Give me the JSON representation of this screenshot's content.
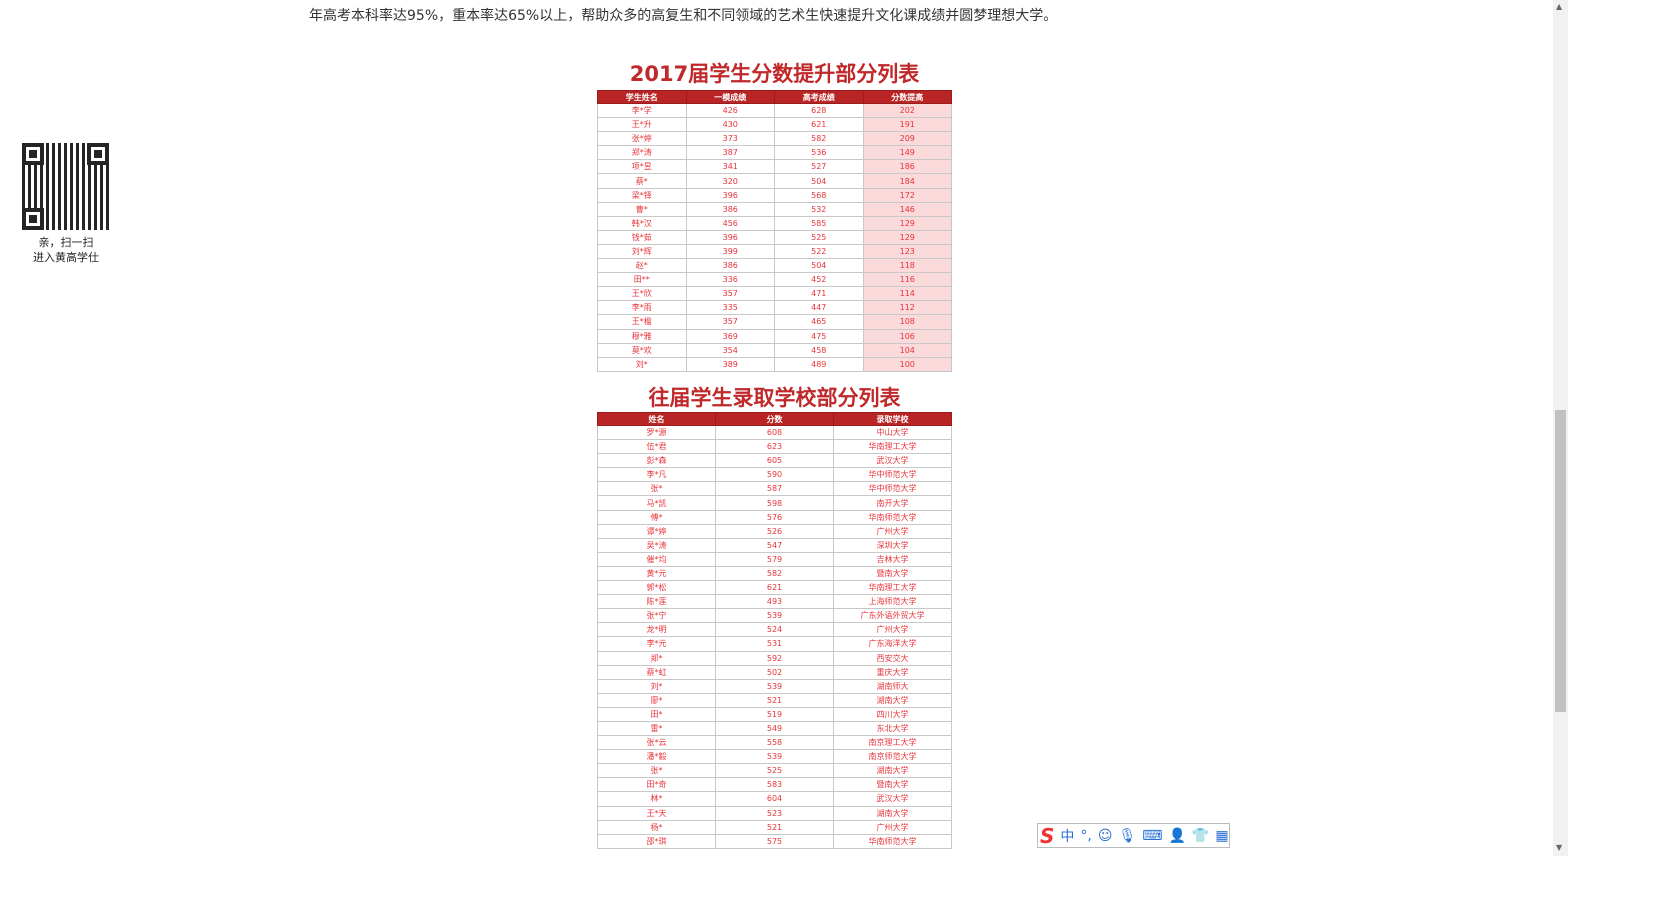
{
  "intro": "年高考本科率达95%，重本率达65%以上，帮助众多的高复生和不同领域的艺术生快速提升文化课成绩并圆梦理想大学。",
  "qr": {
    "line1": "亲，扫一扫",
    "line2": "进入黄高学仕"
  },
  "table1": {
    "title": "2017届学生分数提升部分列表",
    "headers": [
      "学生姓名",
      "一模成绩",
      "高考成绩",
      "分数提高"
    ],
    "rows": [
      [
        "李*学",
        "426",
        "628",
        "202"
      ],
      [
        "王*升",
        "430",
        "621",
        "191"
      ],
      [
        "张*婷",
        "373",
        "582",
        "209"
      ],
      [
        "郑*涛",
        "387",
        "536",
        "149"
      ],
      [
        "项*昱",
        "341",
        "527",
        "186"
      ],
      [
        "蔡*",
        "320",
        "504",
        "184"
      ],
      [
        "梁*铎",
        "396",
        "568",
        "172"
      ],
      [
        "曹*",
        "386",
        "532",
        "146"
      ],
      [
        "韩*汉",
        "456",
        "585",
        "129"
      ],
      [
        "钱*茹",
        "396",
        "525",
        "129"
      ],
      [
        "刘*辉",
        "399",
        "522",
        "123"
      ],
      [
        "赵*",
        "386",
        "504",
        "118"
      ],
      [
        "田**",
        "336",
        "452",
        "116"
      ],
      [
        "王*欣",
        "357",
        "471",
        "114"
      ],
      [
        "李*雨",
        "335",
        "447",
        "112"
      ],
      [
        "王*楹",
        "357",
        "465",
        "108"
      ],
      [
        "穆*雅",
        "369",
        "475",
        "106"
      ],
      [
        "莫*欢",
        "354",
        "458",
        "104"
      ],
      [
        "刘*",
        "389",
        "489",
        "100"
      ]
    ]
  },
  "table2": {
    "title": "往届学生录取学校部分列表",
    "headers": [
      "姓名",
      "分数",
      "录取学校"
    ],
    "rows": [
      [
        "罗*源",
        "608",
        "中山大学"
      ],
      [
        "伍*君",
        "623",
        "华南理工大学"
      ],
      [
        "彭*森",
        "605",
        "武汉大学"
      ],
      [
        "李*凡",
        "590",
        "华中师范大学"
      ],
      [
        "张*",
        "587",
        "华中师范大学"
      ],
      [
        "马*凯",
        "598",
        "南开大学"
      ],
      [
        "傅*",
        "576",
        "华南师范大学"
      ],
      [
        "谭*婷",
        "526",
        "广州大学"
      ],
      [
        "吴*涛",
        "547",
        "深圳大学"
      ],
      [
        "催*均",
        "579",
        "吉林大学"
      ],
      [
        "黄*元",
        "582",
        "暨南大学"
      ],
      [
        "郭*松",
        "621",
        "华南理工大学"
      ],
      [
        "陈*莲",
        "493",
        "上海师范大学"
      ],
      [
        "张*宁",
        "539",
        "广东外语外贸大学"
      ],
      [
        "龙*明",
        "524",
        "广州大学"
      ],
      [
        "李*元",
        "531",
        "广东海洋大学"
      ],
      [
        "郑*",
        "592",
        "西安交大"
      ],
      [
        "蔡*虹",
        "502",
        "重庆大学"
      ],
      [
        "刘*",
        "539",
        "湖南师大"
      ],
      [
        "廖*",
        "521",
        "湖南大学"
      ],
      [
        "田*",
        "519",
        "四川大学"
      ],
      [
        "雷*",
        "549",
        "东北大学"
      ],
      [
        "张*云",
        "558",
        "南京理工大学"
      ],
      [
        "潘*毅",
        "539",
        "南京师范大学"
      ],
      [
        "张*",
        "525",
        "湖南大学"
      ],
      [
        "田*奇",
        "583",
        "暨南大学"
      ],
      [
        "林*",
        "604",
        "武汉大学"
      ],
      [
        "王*天",
        "523",
        "湖南大学"
      ],
      [
        "杨*",
        "521",
        "广州大学"
      ],
      [
        "邵*琪",
        "575",
        "华南师范大学"
      ]
    ]
  },
  "ime": {
    "lang": "中",
    "punct": "°,"
  },
  "colors": {
    "header": "#b82524",
    "text": "#e8343a",
    "highlight": "#fadadb"
  }
}
